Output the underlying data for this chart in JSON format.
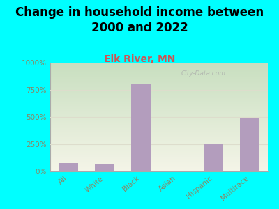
{
  "title": "Change in household income between\n2000 and 2022",
  "subtitle": "Elk River, MN",
  "categories": [
    "All",
    "White",
    "Black",
    "Asian",
    "Hispanic",
    "Multirace"
  ],
  "values": [
    75,
    70,
    800,
    0,
    255,
    490
  ],
  "bar_color": "#b39dbd",
  "background_color": "#00FFFF",
  "plot_bg_top_left": "#c8dfc0",
  "plot_bg_bottom_right": "#f5f5e8",
  "title_fontsize": 12,
  "title_fontweight": "bold",
  "subtitle_fontsize": 10,
  "subtitle_color": "#cc5555",
  "subtitle_fontweight": "bold",
  "ylabel_ticks": [
    "0%",
    "250%",
    "500%",
    "750%",
    "1000%"
  ],
  "ytick_values": [
    0,
    250,
    500,
    750,
    1000
  ],
  "ylim": [
    0,
    1000
  ],
  "watermark": "City-Data.com",
  "tick_label_color": "#888866",
  "grid_color": "#ddddcc",
  "bar_width": 0.55
}
